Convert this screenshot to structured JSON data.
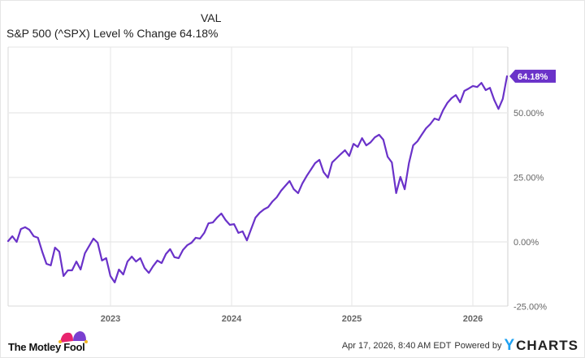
{
  "legend": {
    "column_header": "VAL",
    "series_name": "S&P 500 (^SPX) Level % Change",
    "series_value": "64.18%"
  },
  "chart_data": {
    "type": "line",
    "title": "S&P 500 (^SPX) Level % Change",
    "xlabel": "",
    "ylabel": "",
    "x_tick_labels": [
      "2023",
      "2024",
      "2025",
      "2026"
    ],
    "y_tick_labels": [
      "-25.00%",
      "0.00%",
      "25.00%",
      "50.00%"
    ],
    "ylim": [
      -25,
      75
    ],
    "grid": true,
    "legend_position": "top-left",
    "end_value_label": "64.18%",
    "series": [
      {
        "name": "S&P 500 (^SPX) Level % Change",
        "color": "#6a32c9",
        "points": [
          [
            "2022-04",
            0.3
          ],
          [
            "2022-04",
            2.2
          ],
          [
            "2022-04",
            0.0
          ],
          [
            "2022-05",
            5.0
          ],
          [
            "2022-05",
            5.7
          ],
          [
            "2022-05",
            4.7
          ],
          [
            "2022-05",
            2.2
          ],
          [
            "2022-06",
            1.6
          ],
          [
            "2022-06",
            -3.8
          ],
          [
            "2022-06",
            -8.5
          ],
          [
            "2022-06",
            -9.1
          ],
          [
            "2022-07",
            -2.2
          ],
          [
            "2022-07",
            -3.8
          ],
          [
            "2022-07",
            -13.2
          ],
          [
            "2022-07",
            -11.0
          ],
          [
            "2022-08",
            -11.0
          ],
          [
            "2022-08",
            -7.6
          ],
          [
            "2022-08",
            -10.7
          ],
          [
            "2022-08",
            -4.4
          ],
          [
            "2022-08",
            -1.6
          ],
          [
            "2022-09",
            1.3
          ],
          [
            "2022-09",
            -0.3
          ],
          [
            "2022-09",
            -7.2
          ],
          [
            "2022-09",
            -6.3
          ],
          [
            "2022-10",
            -13.2
          ],
          [
            "2022-10",
            -15.7
          ],
          [
            "2022-10",
            -10.7
          ],
          [
            "2022-11",
            -12.6
          ],
          [
            "2022-11",
            -7.6
          ],
          [
            "2022-11",
            -5.7
          ],
          [
            "2022-11",
            -7.6
          ],
          [
            "2022-12",
            -6.3
          ],
          [
            "2022-12",
            -10.1
          ],
          [
            "2022-12",
            -12.0
          ],
          [
            "2022-12",
            -9.4
          ],
          [
            "2023-01",
            -7.2
          ],
          [
            "2023-01",
            -8.2
          ],
          [
            "2023-01",
            -4.7
          ],
          [
            "2023-02",
            -2.8
          ],
          [
            "2023-02",
            -5.9
          ],
          [
            "2023-03",
            -6.3
          ],
          [
            "2023-03",
            -3.1
          ],
          [
            "2023-03",
            -1.3
          ],
          [
            "2023-04",
            -0.3
          ],
          [
            "2023-04",
            1.6
          ],
          [
            "2023-05",
            1.3
          ],
          [
            "2023-05",
            3.5
          ],
          [
            "2023-06",
            7.2
          ],
          [
            "2023-06",
            7.5
          ],
          [
            "2023-07",
            9.4
          ],
          [
            "2023-07",
            11.0
          ],
          [
            "2023-08",
            8.5
          ],
          [
            "2023-08",
            6.6
          ],
          [
            "2023-09",
            6.9
          ],
          [
            "2023-09",
            3.5
          ],
          [
            "2023-10",
            4.1
          ],
          [
            "2023-10",
            0.6
          ],
          [
            "2023-11",
            5.0
          ],
          [
            "2023-11",
            9.4
          ],
          [
            "2023-12",
            11.3
          ],
          [
            "2023-12",
            12.6
          ],
          [
            "2024-01",
            13.5
          ],
          [
            "2024-01",
            15.7
          ],
          [
            "2024-02",
            17.3
          ],
          [
            "2024-02",
            19.8
          ],
          [
            "2024-03",
            21.7
          ],
          [
            "2024-03",
            23.6
          ],
          [
            "2024-04",
            20.4
          ],
          [
            "2024-04",
            18.9
          ],
          [
            "2024-05",
            22.6
          ],
          [
            "2024-05",
            25.5
          ],
          [
            "2024-06",
            28.0
          ],
          [
            "2024-06",
            30.5
          ],
          [
            "2024-07",
            31.8
          ],
          [
            "2024-07",
            27.0
          ],
          [
            "2024-08",
            24.9
          ],
          [
            "2024-08",
            30.8
          ],
          [
            "2024-09",
            32.4
          ],
          [
            "2024-09",
            34.0
          ],
          [
            "2024-10",
            35.5
          ],
          [
            "2024-10",
            33.3
          ],
          [
            "2024-11",
            38.0
          ],
          [
            "2024-11",
            36.8
          ],
          [
            "2024-12",
            40.2
          ],
          [
            "2024-12",
            37.4
          ],
          [
            "2025-01",
            38.6
          ],
          [
            "2025-01",
            40.5
          ],
          [
            "2025-02",
            41.5
          ],
          [
            "2025-02",
            39.6
          ],
          [
            "2025-03",
            33.0
          ],
          [
            "2025-03",
            30.8
          ],
          [
            "2025-04",
            18.9
          ],
          [
            "2025-04",
            25.2
          ],
          [
            "2025-04",
            20.4
          ],
          [
            "2025-05",
            30.5
          ],
          [
            "2025-05",
            37.4
          ],
          [
            "2025-06",
            39.0
          ],
          [
            "2025-06",
            41.5
          ],
          [
            "2025-07",
            44.0
          ],
          [
            "2025-07",
            45.6
          ],
          [
            "2025-08",
            47.8
          ],
          [
            "2025-08",
            47.2
          ],
          [
            "2025-09",
            51.0
          ],
          [
            "2025-09",
            53.8
          ],
          [
            "2025-10",
            55.7
          ],
          [
            "2025-10",
            56.9
          ],
          [
            "2025-11",
            54.1
          ],
          [
            "2025-11",
            58.5
          ],
          [
            "2025-12",
            59.4
          ],
          [
            "2025-12",
            60.4
          ],
          [
            "2026-01",
            60.0
          ],
          [
            "2026-01",
            61.6
          ],
          [
            "2026-02",
            58.8
          ],
          [
            "2026-02",
            59.7
          ],
          [
            "2026-03",
            55.0
          ],
          [
            "2026-03",
            51.5
          ],
          [
            "2026-04",
            55.4
          ],
          [
            "2026-04",
            64.18
          ]
        ]
      }
    ]
  },
  "footer": {
    "brand_left": "The Motley Fool",
    "timestamp": "Apr 17, 2026, 8:40 AM EDT",
    "powered_by": "Powered by",
    "brand_right_y": "Y",
    "brand_right_rest": "CHARTS"
  }
}
